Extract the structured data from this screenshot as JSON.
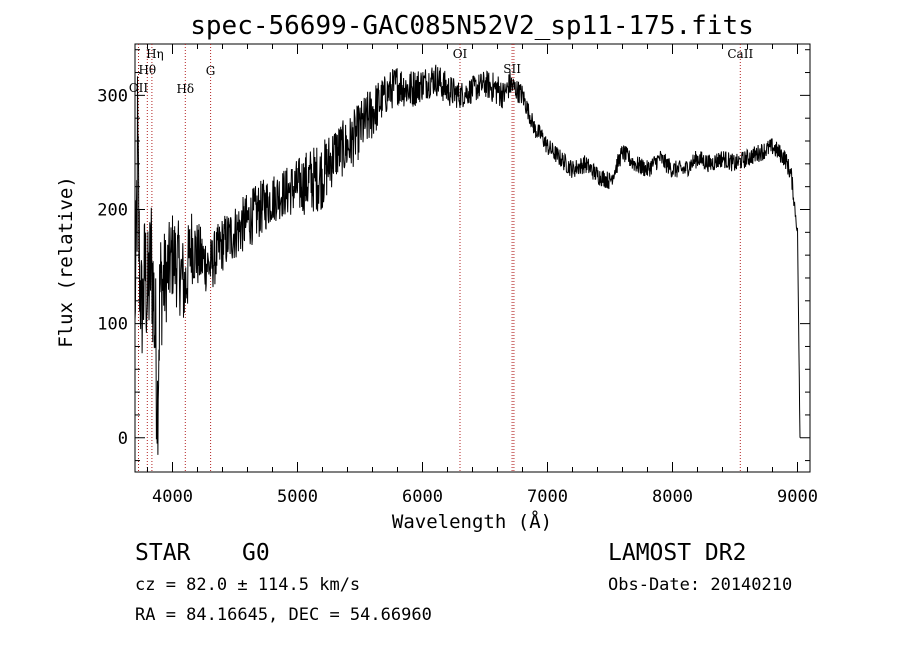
{
  "chart_data": {
    "type": "line",
    "title": "spec-56699-GAC085N52V2_sp11-175.fits",
    "xlabel": "Wavelength (Å)",
    "ylabel": "Flux (relative)",
    "xlim": [
      3700,
      9100
    ],
    "ylim": [
      -30,
      345
    ],
    "x_ticks": [
      4000,
      5000,
      6000,
      7000,
      8000,
      9000
    ],
    "y_ticks": [
      0,
      100,
      200,
      300
    ],
    "grid": false,
    "series": [
      {
        "x": [
          3700,
          3720,
          3740,
          3760,
          3780,
          3800,
          3830,
          3860,
          3880,
          3900,
          3950,
          4000,
          4050,
          4100,
          4150,
          4200,
          4300,
          4400,
          4500,
          4600,
          4700,
          4800,
          4900,
          5000,
          5100,
          5200,
          5300,
          5400,
          5500,
          5600,
          5700,
          5800,
          5900,
          6000,
          6100,
          6200,
          6300,
          6400,
          6500,
          6600,
          6650,
          6700,
          6750,
          6800,
          6850,
          6900,
          6950,
          7000,
          7100,
          7200,
          7300,
          7400,
          7500,
          7600,
          7700,
          7800,
          7900,
          8000,
          8100,
          8200,
          8300,
          8400,
          8500,
          8600,
          8700,
          8800,
          8850,
          8900,
          8950,
          9000,
          9020
        ],
        "y": [
          100,
          240,
          130,
          110,
          150,
          120,
          160,
          100,
          30,
          130,
          140,
          160,
          150,
          130,
          170,
          160,
          150,
          170,
          180,
          190,
          200,
          210,
          215,
          220,
          225,
          230,
          250,
          255,
          270,
          285,
          300,
          310,
          305,
          310,
          315,
          305,
          300,
          305,
          310,
          305,
          300,
          310,
          305,
          300,
          285,
          270,
          265,
          255,
          245,
          235,
          240,
          230,
          225,
          250,
          240,
          235,
          245,
          235,
          235,
          245,
          240,
          245,
          240,
          245,
          250,
          255,
          250,
          245,
          230,
          180,
          0
        ],
        "noise": [
          10,
          100,
          50,
          50,
          60,
          60,
          60,
          70,
          60,
          60,
          40,
          40,
          40,
          40,
          35,
          30,
          25,
          25,
          25,
          25,
          25,
          22,
          22,
          25,
          30,
          30,
          25,
          25,
          25,
          25,
          18,
          18,
          18,
          15,
          15,
          15,
          12,
          12,
          12,
          15,
          12,
          12,
          10,
          10,
          8,
          8,
          8,
          8,
          8,
          8,
          8,
          8,
          8,
          8,
          8,
          8,
          8,
          8,
          8,
          8,
          8,
          8,
          8,
          8,
          8,
          8,
          8,
          8,
          8,
          5,
          0
        ],
        "color": "#000000"
      }
    ],
    "line_markers": [
      {
        "name": "OII",
        "x": 3728
      },
      {
        "name": "Hθ",
        "x": 3798
      },
      {
        "name": "Hη",
        "x": 3835
      },
      {
        "name": "Hδ",
        "x": 4102
      },
      {
        "name": "G",
        "x": 4305
      },
      {
        "name": "OI",
        "x": 6300
      },
      {
        "name": "SII",
        "x": 6717
      },
      {
        "name": "SII",
        "x": 6731
      },
      {
        "name": "CaII",
        "x": 8542
      }
    ],
    "marker_color": "#b22222"
  },
  "info": {
    "object_class": "STAR",
    "subclass": "G0",
    "survey": "LAMOST DR2",
    "cz": "cz = 82.0 ± 114.5 km/s",
    "obs_date": "Obs-Date: 20140210",
    "coords": "RA =  84.16645, DEC =  54.66960"
  }
}
